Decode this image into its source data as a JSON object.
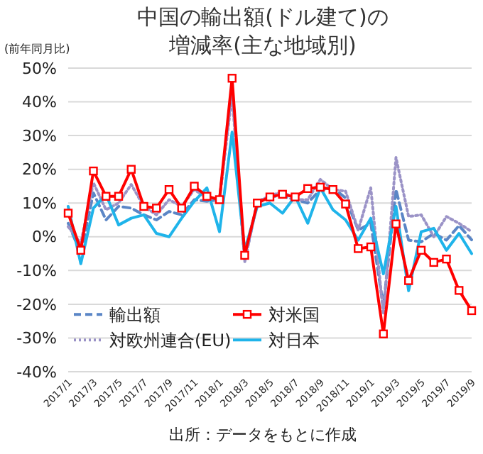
{
  "chart_data": {
    "type": "line",
    "title": "中国の輸出額(ドル建て)の増減率(主な地域別)",
    "ylabel": "(前年同月比)",
    "categories": [
      "2017/1",
      null,
      "2017/3",
      null,
      "2017/5",
      null,
      "2017/7",
      null,
      "2017/9",
      null,
      "2017/11",
      null,
      "2018/1",
      null,
      "2018/3",
      null,
      "2018/5",
      null,
      "2018/7",
      null,
      "2018/9",
      null,
      "2018/11",
      null,
      "2019/1",
      null,
      "2019/3",
      null,
      "2019/5",
      null,
      "2019/7",
      null,
      "2019/9"
    ],
    "series": [
      {
        "name": "輸出額",
        "color": "#5b86c6",
        "line_style": "dashed",
        "marker": "none",
        "values": [
          4,
          -5,
          13,
          5,
          9,
          8.5,
          6.5,
          5,
          7.5,
          6.5,
          11,
          10.5,
          11,
          44,
          -7,
          10,
          12,
          12,
          11,
          10,
          14,
          14.5,
          11.5,
          2,
          4,
          -20.7,
          14,
          -1,
          -1.5,
          1,
          -1,
          3.3,
          -0.9
        ]
      },
      {
        "name": "対米国",
        "color": "#ff0000",
        "line_style": "solid",
        "marker": "square",
        "values": [
          7,
          -4,
          19.5,
          12,
          12,
          20,
          9,
          8.5,
          14,
          8.5,
          15,
          12,
          11,
          47,
          -5.5,
          10,
          11.8,
          12.6,
          11.8,
          14.3,
          14.7,
          14,
          9.7,
          -3.5,
          -3,
          -28.8,
          3.8,
          -13,
          -4,
          -7.6,
          -6.6,
          -15.9,
          -21.9
        ]
      },
      {
        "name": "対欧州連合(EU)",
        "color": "#9b93c7",
        "line_style": "dotted",
        "marker": "none",
        "values": [
          3,
          -2,
          16,
          8,
          10,
          15.5,
          9,
          6.5,
          11,
          9,
          14,
          11.5,
          11,
          42,
          -7.5,
          10.5,
          12,
          13.5,
          11,
          11,
          17,
          14,
          13.5,
          2,
          14.5,
          -23,
          23.5,
          6,
          6.5,
          0,
          6,
          4,
          1.5
        ]
      },
      {
        "name": "対日本",
        "color": "#1fb4ea",
        "line_style": "solid",
        "marker": "none",
        "values": [
          9,
          -8,
          8.5,
          12.5,
          3.5,
          5.5,
          6.5,
          1,
          0,
          5.5,
          10.5,
          14.5,
          1.5,
          31,
          -4,
          9,
          10,
          7,
          12,
          4,
          14.5,
          8,
          5,
          -1,
          5.5,
          -11,
          9,
          -16,
          1.5,
          2.5,
          -4,
          1,
          -5
        ]
      }
    ],
    "ylim": [
      -40,
      50
    ],
    "yticks": [
      {
        "value": -40,
        "label": "-40%"
      },
      {
        "value": -30,
        "label": "-30%"
      },
      {
        "value": -20,
        "label": "-20%"
      },
      {
        "value": -10,
        "label": "-10%"
      },
      {
        "value": 0,
        "label": "0%"
      },
      {
        "value": 10,
        "label": "10%"
      },
      {
        "value": 20,
        "label": "20%"
      },
      {
        "value": 30,
        "label": "30%"
      },
      {
        "value": 40,
        "label": "40%"
      },
      {
        "value": 50,
        "label": "50%"
      }
    ],
    "grid": "y",
    "legend": "bottom left",
    "annotations": [
      "出所：データをもとに作成"
    ]
  }
}
